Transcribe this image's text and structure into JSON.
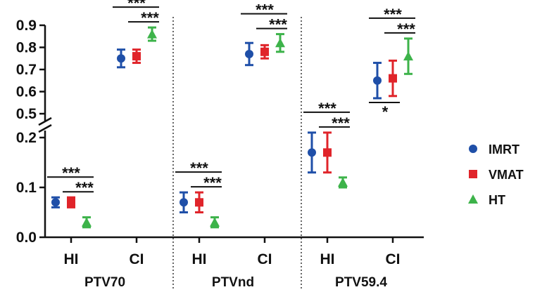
{
  "chart_data": {
    "type": "scatter",
    "title": "",
    "xlabel": "",
    "ylabel": "",
    "y_axis_break": {
      "lower_range": [
        0.0,
        0.2
      ],
      "upper_range": [
        0.5,
        0.9
      ]
    },
    "yticks_lower": [
      "0.0",
      "0.1",
      "0.2"
    ],
    "yticks_upper": [
      "0.5",
      "0.6",
      "0.7",
      "0.8",
      "0.9"
    ],
    "legend_position": "right",
    "legend": [
      {
        "name": "IMRT",
        "color": "#1f4fa8",
        "marker": "circle"
      },
      {
        "name": "VMAT",
        "color": "#e0242a",
        "marker": "square"
      },
      {
        "name": "HT",
        "color": "#3db34a",
        "marker": "triangle"
      }
    ],
    "groups": [
      {
        "name": "PTV70",
        "categories": [
          {
            "label": "HI",
            "points": [
              {
                "series": "IMRT",
                "value": 0.07,
                "err": 0.01
              },
              {
                "series": "VMAT",
                "value": 0.07,
                "err": 0.01
              },
              {
                "series": "HT",
                "value": 0.03,
                "err": 0.01
              }
            ],
            "significance": [
              {
                "pair": [
                  "IMRT",
                  "HT"
                ],
                "label": "***"
              },
              {
                "pair": [
                  "VMAT",
                  "HT"
                ],
                "label": "***"
              }
            ]
          },
          {
            "label": "CI",
            "points": [
              {
                "series": "IMRT",
                "value": 0.75,
                "err": 0.04
              },
              {
                "series": "VMAT",
                "value": 0.76,
                "err": 0.03
              },
              {
                "series": "HT",
                "value": 0.86,
                "err": 0.03
              }
            ],
            "significance": [
              {
                "pair": [
                  "IMRT",
                  "HT"
                ],
                "label": "***"
              },
              {
                "pair": [
                  "VMAT",
                  "HT"
                ],
                "label": "***"
              }
            ]
          }
        ]
      },
      {
        "name": "PTVnd",
        "categories": [
          {
            "label": "HI",
            "points": [
              {
                "series": "IMRT",
                "value": 0.07,
                "err": 0.02
              },
              {
                "series": "VMAT",
                "value": 0.07,
                "err": 0.02
              },
              {
                "series": "HT",
                "value": 0.03,
                "err": 0.01
              }
            ],
            "significance": [
              {
                "pair": [
                  "IMRT",
                  "HT"
                ],
                "label": "***"
              },
              {
                "pair": [
                  "VMAT",
                  "HT"
                ],
                "label": "***"
              }
            ]
          },
          {
            "label": "CI",
            "points": [
              {
                "series": "IMRT",
                "value": 0.77,
                "err": 0.05
              },
              {
                "series": "VMAT",
                "value": 0.78,
                "err": 0.03
              },
              {
                "series": "HT",
                "value": 0.82,
                "err": 0.04
              }
            ],
            "significance": [
              {
                "pair": [
                  "IMRT",
                  "HT"
                ],
                "label": "***"
              },
              {
                "pair": [
                  "VMAT",
                  "HT"
                ],
                "label": "***"
              }
            ]
          }
        ]
      },
      {
        "name": "PTV59.4",
        "categories": [
          {
            "label": "HI",
            "points": [
              {
                "series": "IMRT",
                "value": 0.17,
                "err": 0.04
              },
              {
                "series": "VMAT",
                "value": 0.17,
                "err": 0.04
              },
              {
                "series": "HT",
                "value": 0.11,
                "err": 0.01
              }
            ],
            "significance": [
              {
                "pair": [
                  "IMRT",
                  "HT"
                ],
                "label": "***"
              },
              {
                "pair": [
                  "VMAT",
                  "HT"
                ],
                "label": "***"
              }
            ]
          },
          {
            "label": "CI",
            "points": [
              {
                "series": "IMRT",
                "value": 0.65,
                "err": 0.08
              },
              {
                "series": "VMAT",
                "value": 0.66,
                "err": 0.08
              },
              {
                "series": "HT",
                "value": 0.76,
                "err": 0.08
              }
            ],
            "significance": [
              {
                "pair": [
                  "IMRT",
                  "HT"
                ],
                "label": "***"
              },
              {
                "pair": [
                  "VMAT",
                  "HT"
                ],
                "label": "***"
              },
              {
                "pair": [
                  "IMRT",
                  "VMAT"
                ],
                "label": "*",
                "below": true
              }
            ]
          }
        ]
      }
    ]
  }
}
